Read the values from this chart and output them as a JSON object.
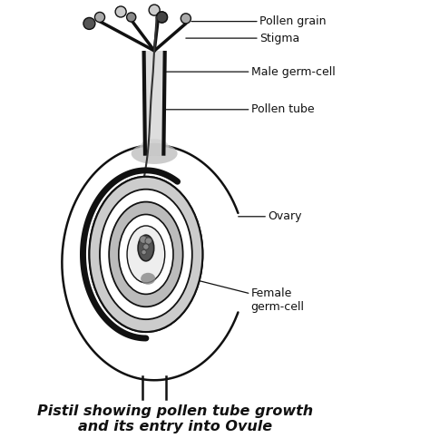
{
  "title": "Pistil showing pollen tube growth\nand its entry into Ovule",
  "title_fontsize": 11.5,
  "title_fontweight": "bold",
  "title_fontstyle": "italic",
  "bg_color": "#ffffff",
  "labels": {
    "pollen_grain": "Pollen grain",
    "stigma": "Stigma",
    "male_germ_cell": "Male germ-cell",
    "pollen_tube": "Pollen tube",
    "ovary": "Ovary",
    "female_germ_cell": "Female\ngerm-cell"
  },
  "line_color": "#111111"
}
